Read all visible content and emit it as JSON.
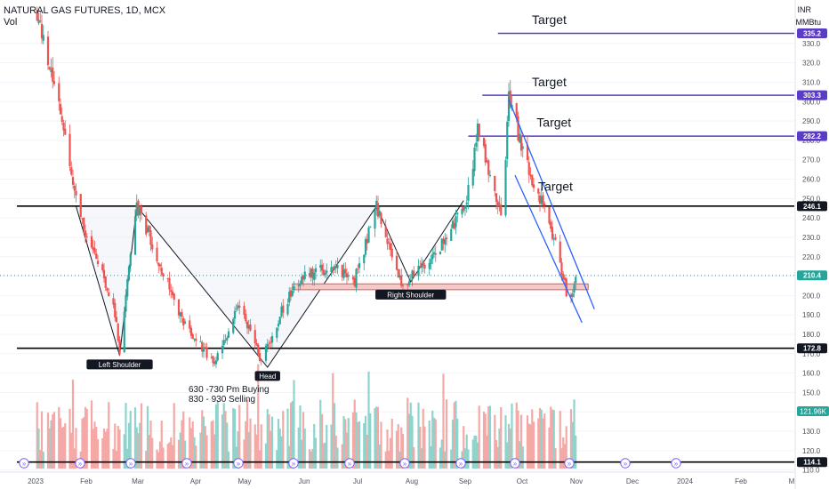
{
  "header": {
    "title": "NATURAL GAS FUTURES, 1D, MCX",
    "subtitle": "Vol",
    "currency": "INR",
    "unit": "MMBtu"
  },
  "colors": {
    "up": "#26a69a",
    "down": "#ef5350",
    "up_volume": "#8fd4cc",
    "down_volume": "#f4a9a7",
    "target_line": "#5b3cc4",
    "level_line": "#000000",
    "channel_line": "#2962ff",
    "zone_fill": "#f6c9c9",
    "zone_border": "#ef5350",
    "pattern_line": "#131722",
    "current_price": "#26a69a",
    "axis_text": "#131722",
    "grid": "#f0f3fa"
  },
  "chart_data": {
    "type": "candlestick",
    "title": "NATURAL GAS FUTURES, 1D, MCX",
    "ylim": [
      108,
      342
    ],
    "y_ticks": [
      110,
      120,
      130,
      140,
      150,
      160,
      170,
      180,
      190,
      200,
      210,
      220,
      230,
      240,
      250,
      260,
      270,
      280,
      290,
      300,
      310,
      320,
      330
    ],
    "x_ticks": [
      "2023",
      "Feb",
      "Mar",
      "Apr",
      "May",
      "Jun",
      "Jul",
      "Aug",
      "Sep",
      "Oct",
      "Nov",
      "Dec",
      "2024",
      "Feb",
      "M"
    ],
    "price_path": [
      {
        "date": "2023-01-01",
        "price": 348
      },
      {
        "date": "2023-01-15",
        "price": 300
      },
      {
        "date": "2023-01-28",
        "price": 247
      },
      {
        "date": "2023-02-03",
        "price": 228
      },
      {
        "date": "2023-02-12",
        "price": 212
      },
      {
        "date": "2023-02-20",
        "price": 196
      },
      {
        "date": "2023-02-24",
        "price": 172
      },
      {
        "date": "2023-03-07",
        "price": 246
      },
      {
        "date": "2023-03-20",
        "price": 220
      },
      {
        "date": "2023-04-05",
        "price": 188
      },
      {
        "date": "2023-04-25",
        "price": 165
      },
      {
        "date": "2023-05-12",
        "price": 195
      },
      {
        "date": "2023-05-26",
        "price": 166
      },
      {
        "date": "2023-06-10",
        "price": 196
      },
      {
        "date": "2023-06-22",
        "price": 210
      },
      {
        "date": "2023-07-10",
        "price": 215
      },
      {
        "date": "2023-07-25",
        "price": 208
      },
      {
        "date": "2023-08-08",
        "price": 246
      },
      {
        "date": "2023-08-25",
        "price": 205
      },
      {
        "date": "2023-09-15",
        "price": 222
      },
      {
        "date": "2023-10-05",
        "price": 248
      },
      {
        "date": "2023-10-12",
        "price": 285
      },
      {
        "date": "2023-10-20",
        "price": 262
      },
      {
        "date": "2023-10-28",
        "price": 242
      },
      {
        "date": "2023-11-01",
        "price": 303
      },
      {
        "date": "2023-11-12",
        "price": 268
      },
      {
        "date": "2023-11-22",
        "price": 248
      },
      {
        "date": "2023-12-02",
        "price": 225
      },
      {
        "date": "2023-12-10",
        "price": 195
      },
      {
        "date": "2023-12-14",
        "price": 210
      }
    ],
    "levels": [
      {
        "value": 335.2,
        "label": "335.2",
        "kind": "target",
        "from_date": "2023-10-25"
      },
      {
        "value": 303.3,
        "label": "303.3",
        "kind": "target",
        "from_date": "2023-10-15"
      },
      {
        "value": 282.2,
        "label": "282.2",
        "kind": "target",
        "from_date": "2023-10-06"
      },
      {
        "value": 246.1,
        "label": "246.1",
        "kind": "level",
        "from_date": "2022-12-20"
      },
      {
        "value": 172.8,
        "label": "172.8",
        "kind": "level",
        "from_date": "2022-12-20"
      },
      {
        "value": 114.1,
        "label": "114.1",
        "kind": "level",
        "from_date": "2022-12-20"
      }
    ],
    "current_price": {
      "value": 210.4,
      "label": "210.4"
    },
    "volume_badge": "121.96K",
    "zone": {
      "from_date": "2023-06-15",
      "to_date": "2023-12-22",
      "low": 203,
      "high": 206
    },
    "channel": [
      {
        "from": {
          "date": "2023-11-01",
          "price": 301
        },
        "to": {
          "date": "2023-12-26",
          "price": 193
        }
      },
      {
        "from": {
          "date": "2023-11-05",
          "price": 262
        },
        "to": {
          "date": "2023-12-18",
          "price": 186
        }
      }
    ],
    "pattern": [
      {
        "date": "2023-01-27",
        "price": 246
      },
      {
        "date": "2023-02-24",
        "price": 169
      },
      {
        "date": "2023-03-07",
        "price": 246
      },
      {
        "date": "2023-05-30",
        "price": 163
      },
      {
        "date": "2023-08-08",
        "price": 246
      },
      {
        "date": "2023-08-30",
        "price": 207
      },
      {
        "date": "2023-10-03",
        "price": 249
      }
    ],
    "pattern_labels": [
      {
        "text": "Left Shoulder",
        "date": "2023-02-24",
        "price": 167
      },
      {
        "text": "Head",
        "date": "2023-05-30",
        "price": 161
      },
      {
        "text": "Right Shoulder",
        "date": "2023-08-30",
        "price": 203
      }
    ],
    "target_labels": [
      {
        "text": "Target",
        "date": "2023-11-27",
        "price": 340
      },
      {
        "text": "Target",
        "date": "2023-11-27",
        "price": 308
      },
      {
        "text": "Target",
        "date": "2023-11-30",
        "price": 287
      },
      {
        "text": "Target",
        "date": "2023-12-01",
        "price": 254
      }
    ],
    "notes": [
      "630 -730 Pm Buying",
      "830 - 930 Selling"
    ]
  }
}
